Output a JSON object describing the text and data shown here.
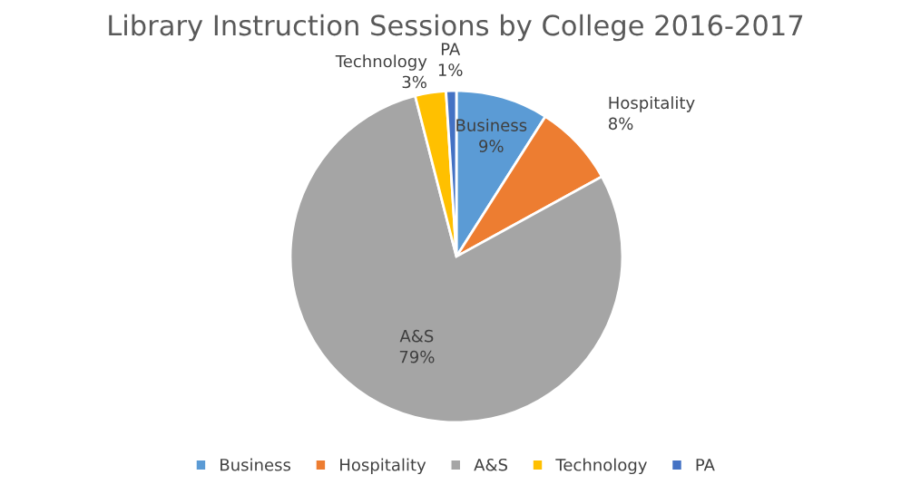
{
  "chart_data": {
    "type": "pie",
    "title": "Library Instruction Sessions by College 2016-2017",
    "categories": [
      "Business",
      "Hospitality",
      "A&S",
      "Technology",
      "PA"
    ],
    "values": [
      9,
      8,
      79,
      3,
      1
    ],
    "value_labels": [
      "9%",
      "8%",
      "79%",
      "3%",
      "1%"
    ],
    "colors": [
      "#5b9bd5",
      "#ed7d31",
      "#a5a5a5",
      "#ffc000",
      "#4472c4"
    ],
    "legend": "bottom"
  }
}
